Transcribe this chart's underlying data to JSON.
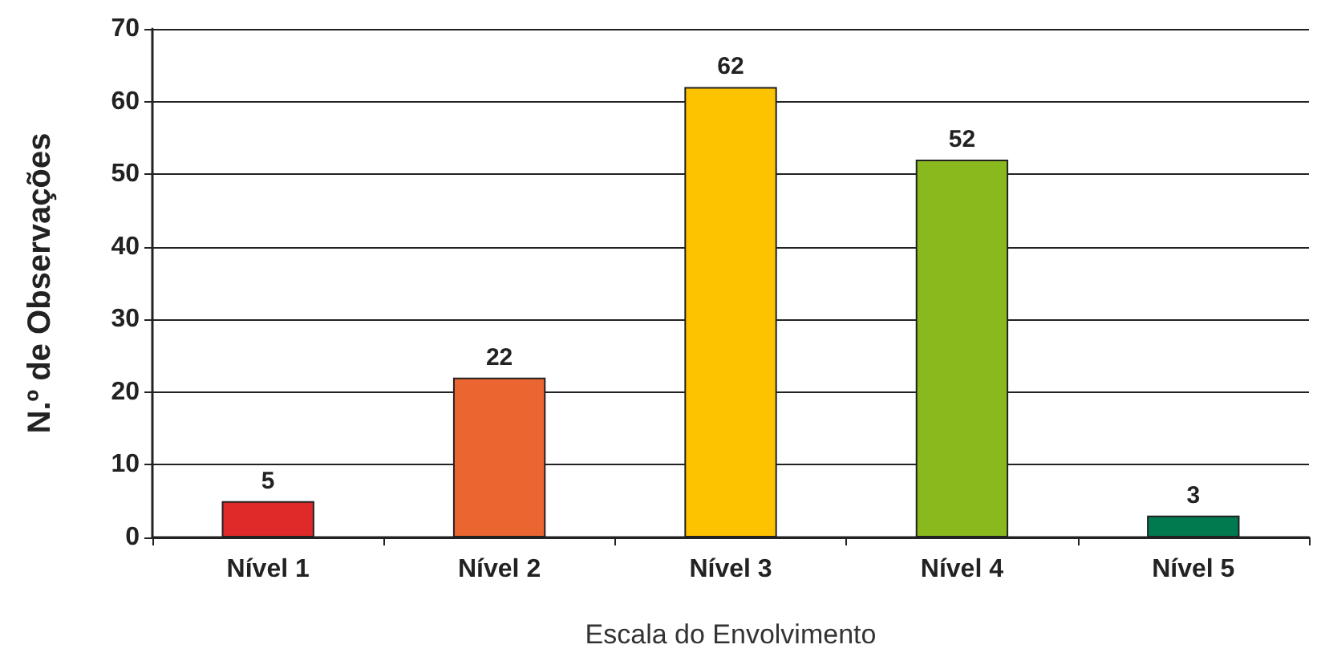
{
  "chart_data": {
    "type": "bar",
    "xlabel": "Escala do Envolvimento",
    "ylabel": "N.º de Observações",
    "categories": [
      "Nível 1",
      "Nível 2",
      "Nível 3",
      "Nível 4",
      "Nível 5"
    ],
    "values": [
      5,
      22,
      62,
      52,
      3
    ],
    "colors": [
      "#e02a2a",
      "#ea6530",
      "#fdc300",
      "#8ab91d",
      "#007a4e"
    ],
    "ylim": [
      0,
      70
    ],
    "yticks": [
      0,
      10,
      20,
      30,
      40,
      50,
      60,
      70
    ],
    "grid": "y",
    "data_labels": true
  }
}
